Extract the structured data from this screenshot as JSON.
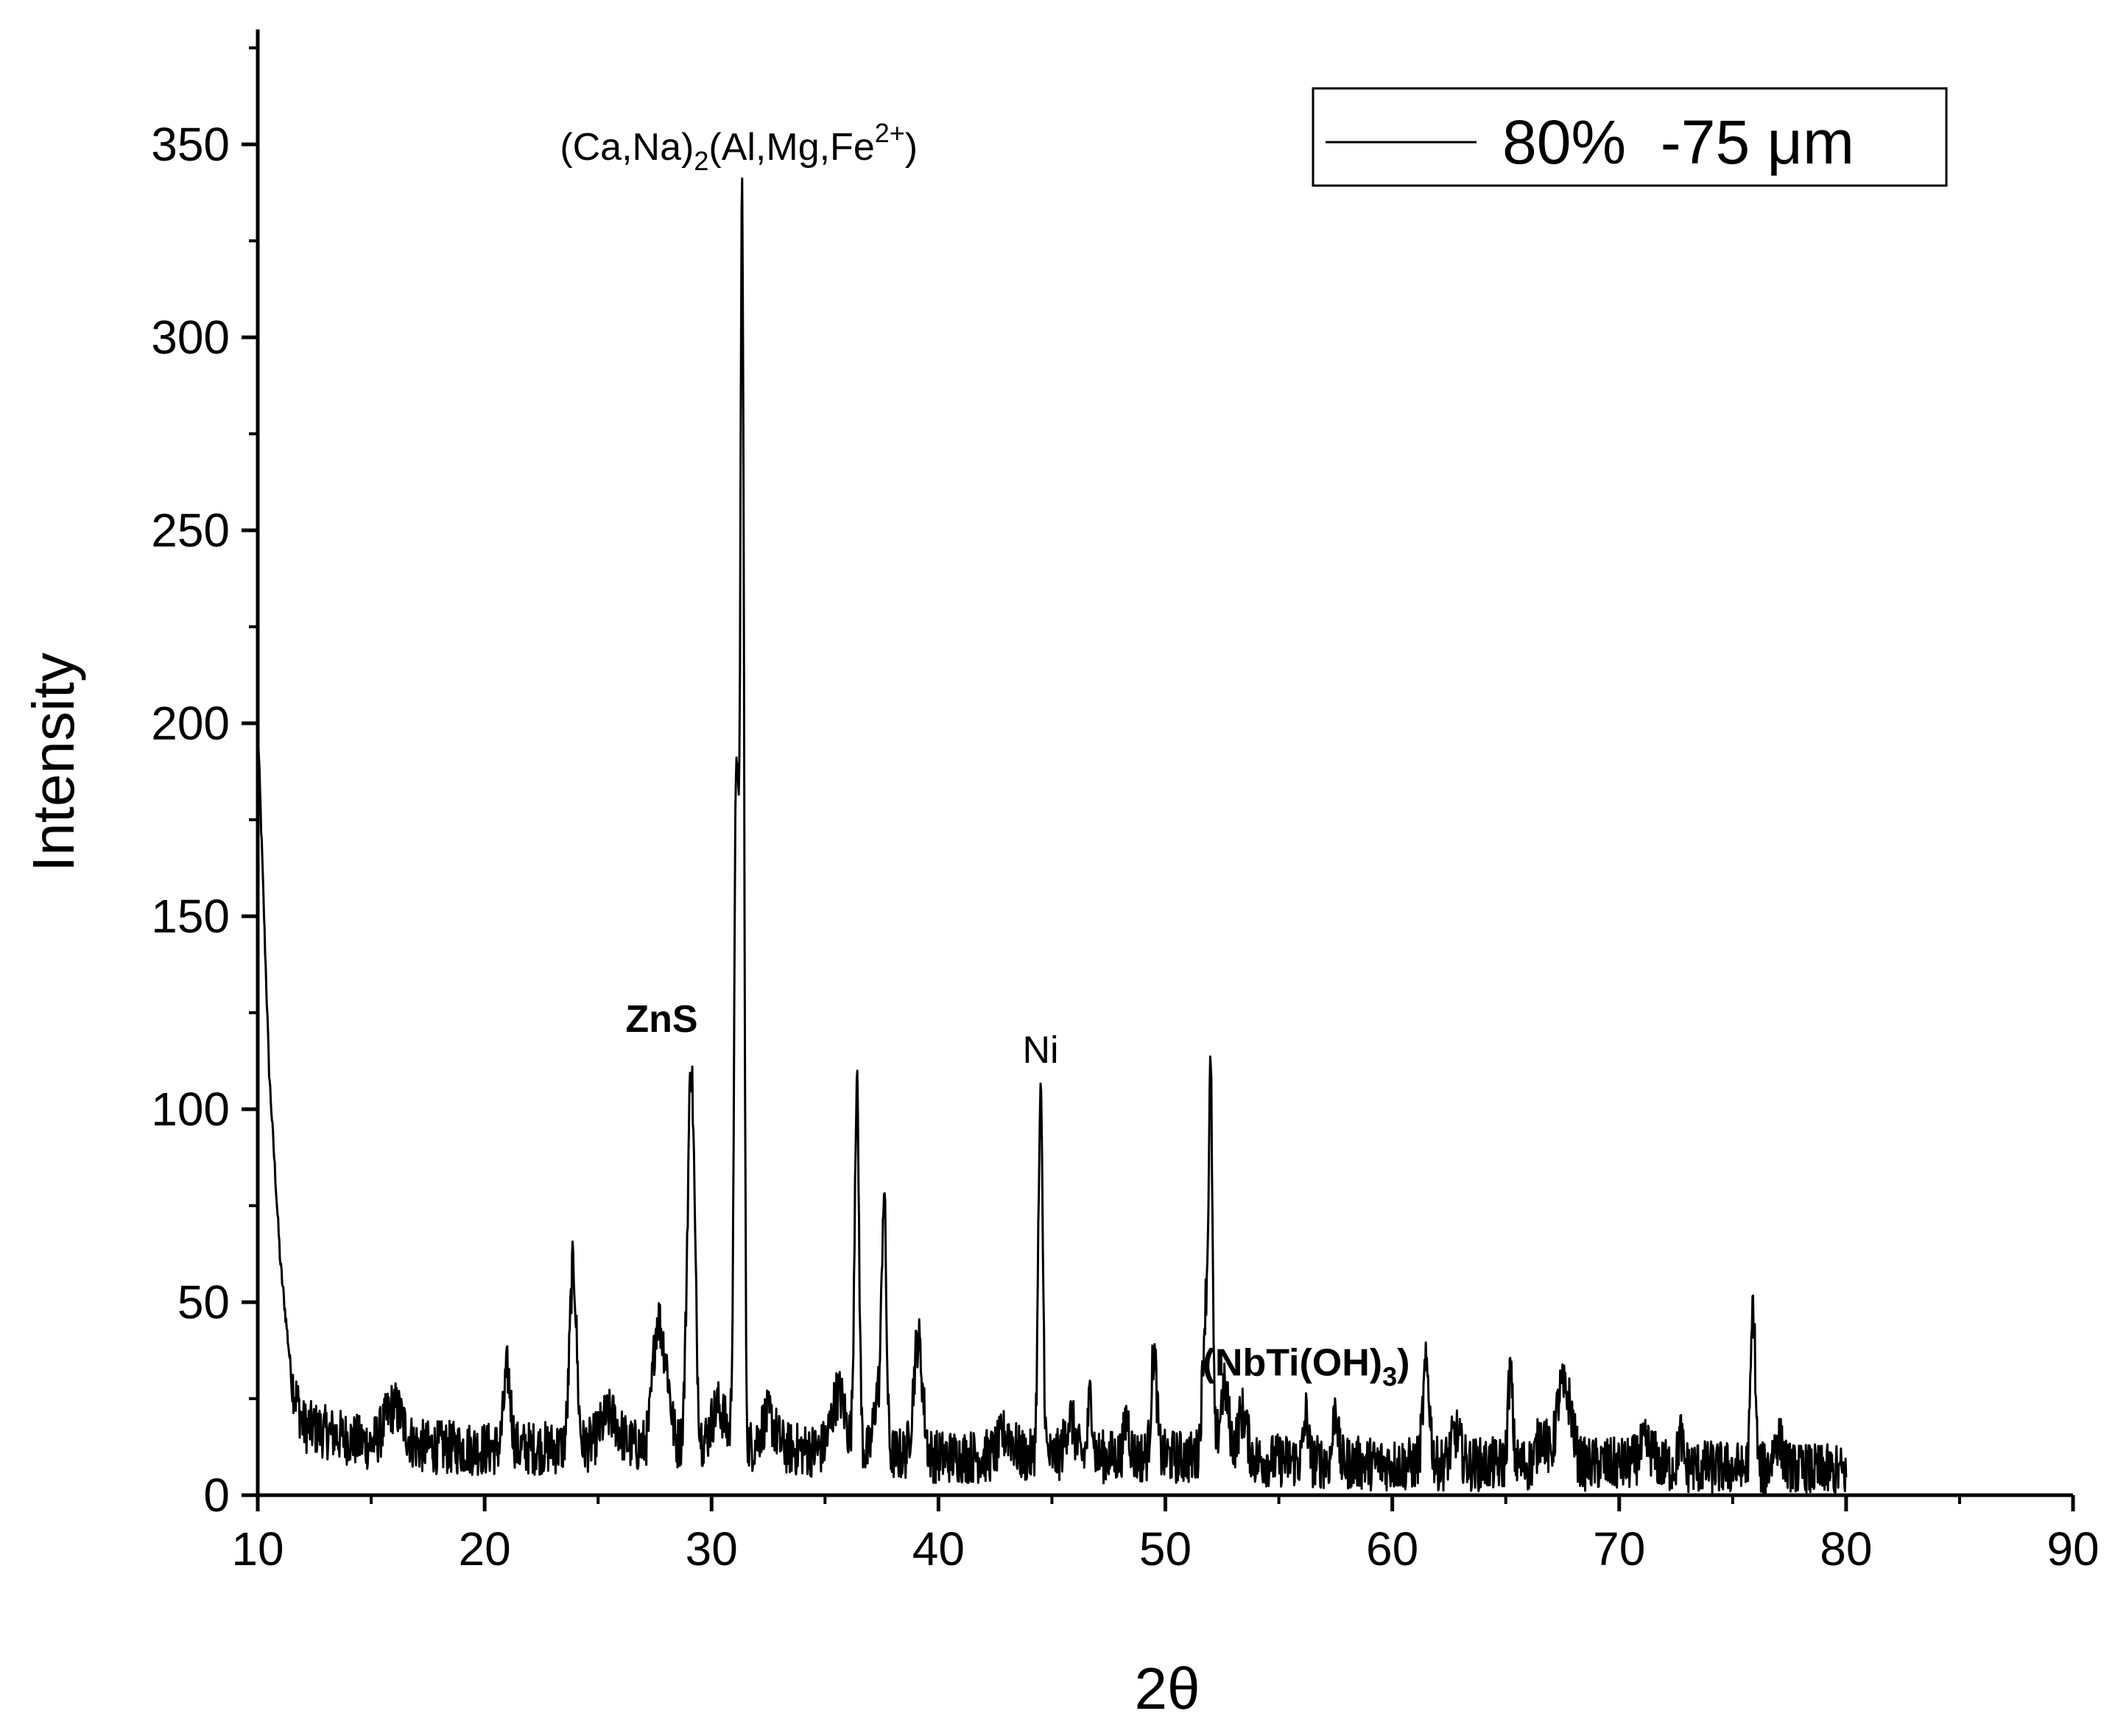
{
  "chart_data": {
    "type": "line",
    "xlabel": "2θ",
    "ylabel": "Intensity",
    "xlim": [
      10,
      90
    ],
    "ylim": [
      0,
      375
    ],
    "x_ticks": [
      10,
      20,
      30,
      40,
      50,
      60,
      70,
      80,
      90
    ],
    "x_tick_labels": [
      "10",
      "20",
      "30",
      "40",
      "50",
      "60",
      "70",
      "80",
      "90"
    ],
    "y_ticks": [
      0,
      50,
      100,
      150,
      200,
      250,
      300,
      350
    ],
    "y_tick_labels": [
      "0",
      "50",
      "100",
      "150",
      "200",
      "250",
      "300",
      "350"
    ],
    "grid": false,
    "legend": {
      "position": "top-right",
      "entries": [
        "80%  -75 μm"
      ]
    },
    "line_color": "#000000",
    "series": [
      {
        "name": "80%  -75 μm",
        "x_range": [
          10,
          80
        ],
        "background": [
          [
            10,
            200
          ],
          [
            10.5,
            110
          ],
          [
            11,
            60
          ],
          [
            11.5,
            30
          ],
          [
            12,
            18
          ],
          [
            15,
            13
          ],
          [
            20,
            12
          ],
          [
            30,
            13
          ],
          [
            40,
            10
          ],
          [
            50,
            10
          ],
          [
            60,
            8
          ],
          [
            70,
            8
          ],
          [
            80,
            6
          ]
        ],
        "peaks": [
          [
            16.0,
            10,
            0.4
          ],
          [
            21.0,
            20,
            0.15
          ],
          [
            23.9,
            47,
            0.15
          ],
          [
            25.5,
            8,
            0.4
          ],
          [
            27.6,
            30,
            0.2
          ],
          [
            28.0,
            18,
            0.2
          ],
          [
            29.1,
            98,
            0.16
          ],
          [
            30.3,
            10,
            0.3
          ],
          [
            31.1,
            180,
            0.1
          ],
          [
            31.35,
            318,
            0.08
          ],
          [
            32.5,
            8,
            0.3
          ],
          [
            35.6,
            15,
            0.3
          ],
          [
            36.4,
            95,
            0.1
          ],
          [
            37.3,
            15,
            0.15
          ],
          [
            37.6,
            66,
            0.1
          ],
          [
            39.1,
            30,
            0.2
          ],
          [
            43.0,
            6,
            0.3
          ],
          [
            44.5,
            92,
            0.1
          ],
          [
            45.8,
            10,
            0.2
          ],
          [
            46.7,
            16,
            0.1
          ],
          [
            48.3,
            10,
            0.12
          ],
          [
            49.5,
            27,
            0.12
          ],
          [
            51.8,
            40,
            0.15
          ],
          [
            52.0,
            83,
            0.08
          ],
          [
            52.6,
            18,
            0.2
          ],
          [
            53.4,
            12,
            0.2
          ],
          [
            56.2,
            12,
            0.1
          ],
          [
            57.5,
            15,
            0.1
          ],
          [
            61.5,
            25,
            0.15
          ],
          [
            62.8,
            8,
            0.2
          ],
          [
            65.2,
            24,
            0.1
          ],
          [
            66.6,
            8,
            0.2
          ],
          [
            67.4,
            17,
            0.2
          ],
          [
            67.8,
            14,
            0.2
          ],
          [
            71.2,
            5,
            0.3
          ],
          [
            72.7,
            8,
            0.1
          ],
          [
            75.9,
            42,
            0.1
          ],
          [
            77.0,
            8,
            0.2
          ]
        ],
        "noise_amplitude": 7
      }
    ],
    "annotations": [
      {
        "label_parts": [
          "(Ca,Na)",
          "2",
          "(Al,Mg,Fe",
          "2+",
          ")"
        ],
        "x": 31.2,
        "y": 346,
        "bold": false
      },
      {
        "label": "ZnS",
        "x": 27.8,
        "y": 120,
        "bold": true
      },
      {
        "label": "Ni",
        "x": 44.5,
        "y": 112,
        "bold": false
      },
      {
        "label_parts": [
          "(NbTi(OH)",
          "3",
          ")"
        ],
        "x": 56.2,
        "y": 31,
        "bold": true
      }
    ]
  }
}
